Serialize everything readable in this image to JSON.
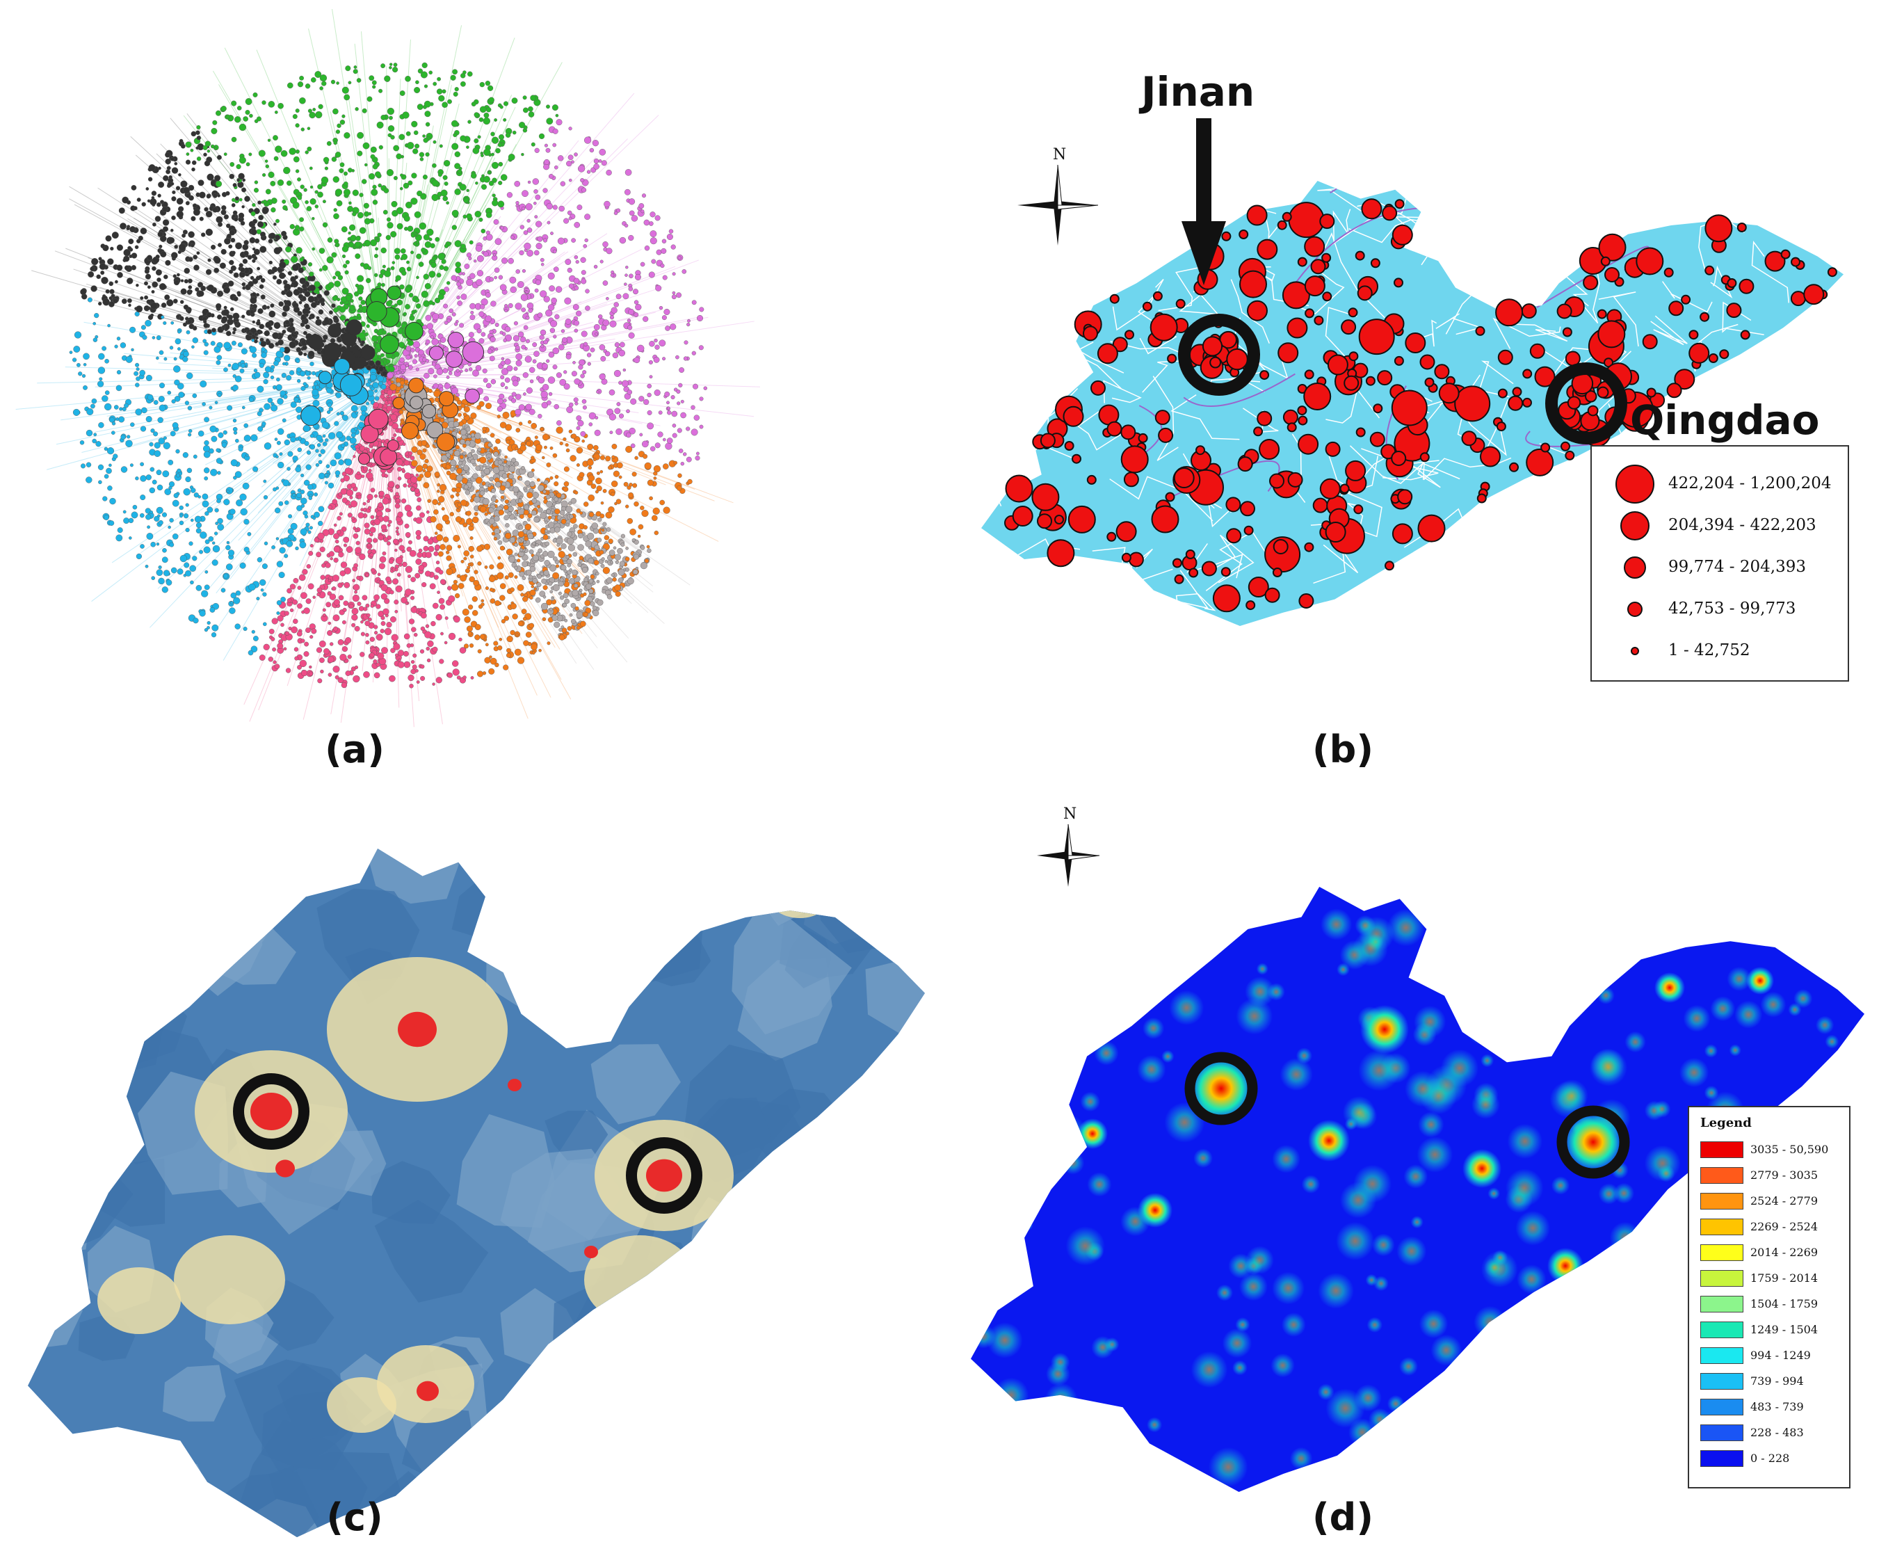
{
  "panels": {
    "a": {
      "label": "(a)"
    },
    "b": {
      "label": "(b)"
    },
    "c": {
      "label": "(c)"
    },
    "d": {
      "label": "(d)"
    }
  },
  "north_letter": "N",
  "cities": {
    "jinan": "Jinan",
    "qingdao": "Qingdao"
  },
  "network_colors": [
    "#2cb52c",
    "#db6fdb",
    "#333333",
    "#1fb3e6",
    "#f07a1a",
    "#ee4d87",
    "#1a9a7a",
    "#b0a9a9",
    "#6cc06c"
  ],
  "map_b_colors": {
    "land": "#6fd6ee",
    "boundary": "#ffffff",
    "circle": "#ee1111",
    "road": "#9966cc"
  },
  "legend_b": [
    {
      "label": "422,204  -  1,200,204",
      "size_class": 5
    },
    {
      "label": "204,394  -  422,203",
      "size_class": 4
    },
    {
      "label": "99,774  -  204,393",
      "size_class": 3
    },
    {
      "label": "42,753  -  99,773",
      "size_class": 2
    },
    {
      "label": "1  -  42,752",
      "size_class": 1
    }
  ],
  "legend_d": {
    "title": "Legend",
    "items": [
      {
        "label": "3035 - 50,590",
        "color": "#ee0000"
      },
      {
        "label": "2779 - 3035",
        "color": "#ff5a1a"
      },
      {
        "label": "2524 - 2779",
        "color": "#ff9410"
      },
      {
        "label": "2269 - 2524",
        "color": "#ffc400"
      },
      {
        "label": "2014 - 2269",
        "color": "#ffff1a"
      },
      {
        "label": "1759 - 2014",
        "color": "#c8f53c"
      },
      {
        "label": "1504 - 1759",
        "color": "#8cf58c"
      },
      {
        "label": "1249 - 1504",
        "color": "#1ae8b4"
      },
      {
        "label": "994  - 1249",
        "color": "#1ae8f0"
      },
      {
        "label": "739  - 994",
        "color": "#1ac0f5"
      },
      {
        "label": "483  - 739",
        "color": "#1a8cf0"
      },
      {
        "label": "228  - 483",
        "color": "#1a55f5"
      },
      {
        "label": "0  -  228",
        "color": "#0a10f0"
      }
    ]
  },
  "map_c_colors": {
    "base": "#4a7fb5",
    "light": "#7aa3c8",
    "beige": "#efe0a8",
    "hot": "#e82a2a"
  },
  "map_d_colors": {
    "base": "#0a18f0",
    "glow": "#1ac0f5",
    "mid": "#ffc400",
    "hot": "#ee0000"
  }
}
